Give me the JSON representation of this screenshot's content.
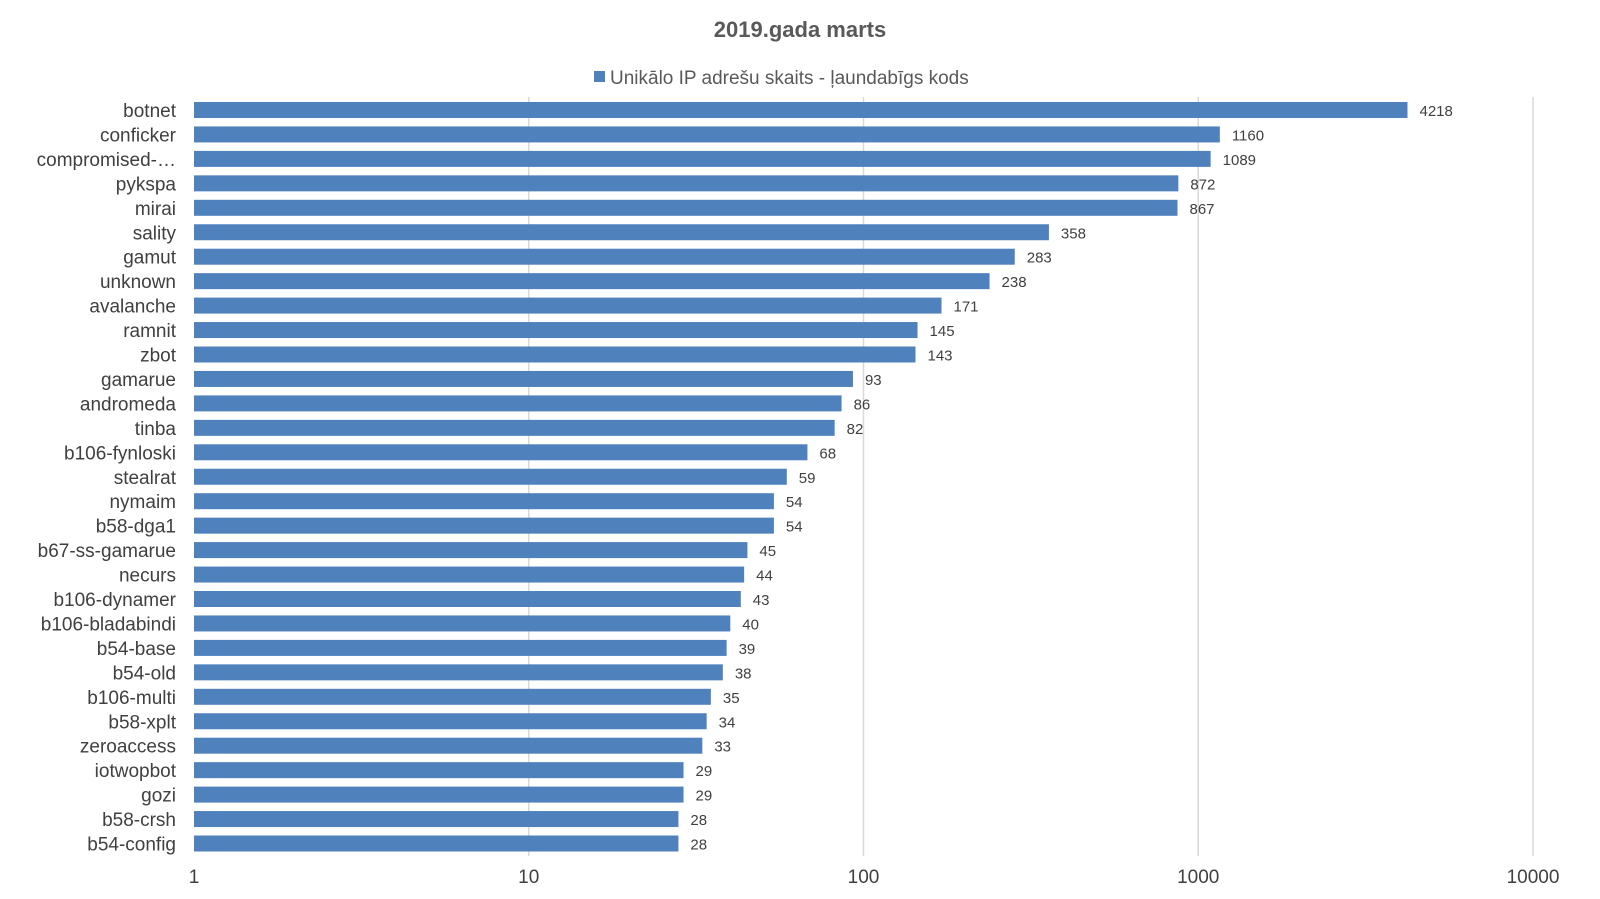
{
  "chart_data": {
    "type": "bar",
    "orientation": "horizontal",
    "title": "2019.gada marts",
    "x_scale": "log",
    "xlim": [
      1,
      10000
    ],
    "x_ticks": [
      "1",
      "10",
      "100",
      "1000",
      "10000"
    ],
    "legend_position": "top",
    "grid": true,
    "categories": [
      "botnet",
      "conficker",
      "compromised-…",
      "pykspa",
      "mirai",
      "sality",
      "gamut",
      "unknown",
      "avalanche",
      "ramnit",
      "zbot",
      "gamarue",
      "andromeda",
      "tinba",
      "b106-fynloski",
      "stealrat",
      "nymaim",
      "b58-dga1",
      "b67-ss-gamarue",
      "necurs",
      "b106-dynamer",
      "b106-bladabindi",
      "b54-base",
      "b54-old",
      "b106-multi",
      "b58-xplt",
      "zeroaccess",
      "iotwopbot",
      "gozi",
      "b58-crsh",
      "b54-config"
    ],
    "series": [
      {
        "name": "Unikālo IP adrešu skaits -  ļaundabīgs kods",
        "color": "#4f81bd",
        "values": [
          4218,
          1160,
          1089,
          872,
          867,
          358,
          283,
          238,
          171,
          145,
          143,
          93,
          86,
          82,
          68,
          59,
          54,
          54,
          45,
          44,
          43,
          40,
          39,
          38,
          35,
          34,
          33,
          29,
          29,
          28,
          28
        ]
      }
    ]
  }
}
